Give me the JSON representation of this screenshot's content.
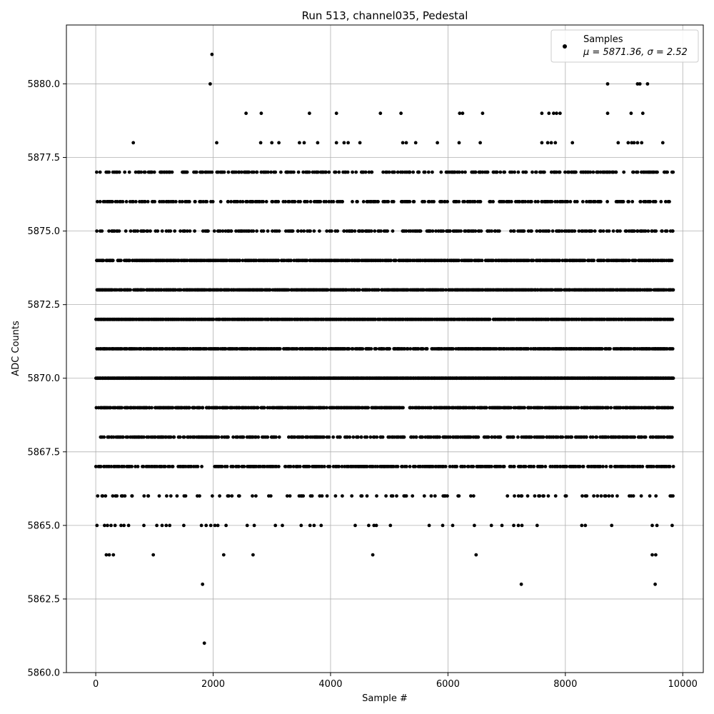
{
  "chart_data": {
    "type": "scatter",
    "title": "Run 513, channel035, Pedestal",
    "xlabel": "Sample #",
    "ylabel": "ADC Counts",
    "xlim": [
      -500,
      10350
    ],
    "ylim": [
      5860.0,
      5882.0
    ],
    "x_ticks": [
      0,
      2000,
      4000,
      6000,
      8000,
      10000
    ],
    "x_tick_labels": [
      "0",
      "2000",
      "4000",
      "6000",
      "8000",
      "10000"
    ],
    "y_ticks": [
      5860.0,
      5862.5,
      5865.0,
      5867.5,
      5870.0,
      5872.5,
      5875.0,
      5877.5,
      5880.0
    ],
    "y_tick_labels": [
      "5860.0",
      "5862.5",
      "5865.0",
      "5867.5",
      "5870.0",
      "5872.5",
      "5875.0",
      "5877.5",
      "5880.0"
    ],
    "grid": true,
    "legend_position": "top-right",
    "legend": {
      "label": "Samples",
      "stats_text": "μ = 5871.36, σ = 2.52"
    },
    "marker_color": "#000000",
    "n_samples": 9830,
    "mean": 5871.36,
    "sigma": 2.52,
    "series": [
      {
        "name": "Samples",
        "note_levels": "discrete ADC levels with approximate sample density",
        "levels": [
          {
            "y": 5861,
            "x": [
              1850
            ]
          },
          {
            "y": 5863,
            "x": [
              1820,
              7250,
              9530
            ]
          },
          {
            "y": 5864,
            "x": [
              180,
              230,
              300,
              980,
              2180,
              2680,
              4720,
              6480,
              9480,
              9540
            ]
          },
          {
            "y": 5865,
            "x": [
              20,
              150,
              200,
              260,
              330,
              430,
              480,
              560,
              820,
              1040,
              1130,
              1200,
              1260,
              1500,
              1800,
              1880,
              1960,
              2030,
              2080,
              2220,
              2580,
              2700,
              3060,
              3180,
              3500,
              3650,
              3720,
              3840,
              4420,
              4650,
              4740,
              4780,
              5020,
              5680,
              5910,
              6080,
              6450,
              6740,
              6920,
              7120,
              7200,
              7260,
              7520,
              8280,
              8340,
              8790,
              9480,
              9560,
              9820
            ]
          },
          {
            "y": 5880,
            "x": [
              1950,
              8720,
              9230,
              9270,
              9400
            ]
          },
          {
            "y": 5881,
            "x": [
              1980
            ]
          },
          {
            "y": 5878,
            "x": [
              640,
              2060,
              2810,
              3000,
              3120,
              3470,
              3550,
              3780,
              4100,
              4230,
              4300,
              4500,
              5230,
              5290,
              5450,
              5820,
              6190,
              6550,
              7600,
              7700,
              7760,
              7830,
              8120,
              8900,
              9070,
              9130,
              9170,
              9230,
              9300,
              9660
            ]
          },
          {
            "y": 5879,
            "x": [
              2560,
              2820,
              3640,
              4100,
              4850,
              5200,
              6200,
              6250,
              6590,
              7600,
              7720,
              7800,
              7850,
              7910,
              8720,
              9120,
              9320
            ]
          }
        ],
        "dense_levels": [
          {
            "y": 5866,
            "density": 0.15
          },
          {
            "y": 5867,
            "density": 0.55
          },
          {
            "y": 5868,
            "density": 0.5
          },
          {
            "y": 5869,
            "density": 0.65
          },
          {
            "y": 5870,
            "density": 1.0
          },
          {
            "y": 5871,
            "density": 0.75
          },
          {
            "y": 5872,
            "density": 0.9
          },
          {
            "y": 5873,
            "density": 0.8
          },
          {
            "y": 5874,
            "density": 0.75
          },
          {
            "y": 5875,
            "density": 0.35
          },
          {
            "y": 5876,
            "density": 0.4
          },
          {
            "y": 5877,
            "density": 0.35
          }
        ]
      }
    ]
  }
}
